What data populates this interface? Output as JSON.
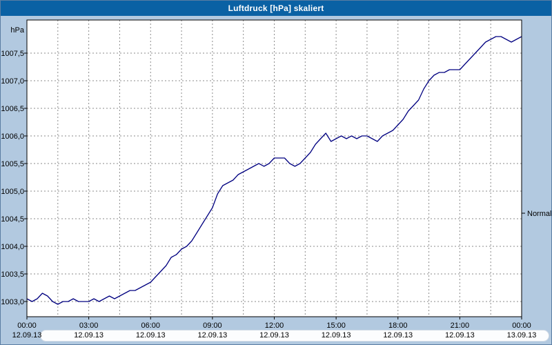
{
  "window": {
    "title": "Luftdruck [hPa] skaliert",
    "title_bar_color": "#0a61a4",
    "background_color": "#b2c9e0"
  },
  "chart_data": {
    "type": "line",
    "title": "Luftdruck [hPa] skaliert",
    "unit_label": "hPa",
    "ylabel": "hPa",
    "ylim": [
      1002.7,
      1008.1
    ],
    "grid": true,
    "plot_background": "#ffffff",
    "grid_color": "#8a8a8a",
    "axis_color": "#000000",
    "line_color": "#000080",
    "y_ticks": [
      1003.0,
      1003.5,
      1004.0,
      1004.5,
      1005.0,
      1005.5,
      1006.0,
      1006.5,
      1007.0,
      1007.5
    ],
    "y_tick_labels": [
      "1003,0",
      "1003,5",
      "1004,0",
      "1004,5",
      "1005,0",
      "1005,5",
      "1006,0",
      "1006,5",
      "1007,0",
      "1007,5"
    ],
    "x_ticks_hours": [
      0,
      3,
      6,
      9,
      12,
      15,
      18,
      21,
      24
    ],
    "x_tick_times": [
      "00:00",
      "03:00",
      "06:00",
      "09:00",
      "12:00",
      "15:00",
      "18:00",
      "21:00",
      "00:00"
    ],
    "x_tick_dates": [
      "12.09.13",
      "12.09.13",
      "12.09.13",
      "12.09.13",
      "12.09.13",
      "12.09.13",
      "12.09.13",
      "12.09.13",
      "13.09.13"
    ],
    "minor_x_interval_hours": 1.5,
    "normal_marker": {
      "label": "Normal",
      "value": 1004.6
    },
    "series": [
      {
        "name": "Luftdruck",
        "x_start_hour": 0,
        "x_step_hours": 0.25,
        "values": [
          1003.05,
          1003.0,
          1003.05,
          1003.15,
          1003.1,
          1003.0,
          1002.95,
          1003.0,
          1003.0,
          1003.05,
          1003.0,
          1003.0,
          1003.0,
          1003.05,
          1003.0,
          1003.05,
          1003.1,
          1003.05,
          1003.1,
          1003.15,
          1003.2,
          1003.2,
          1003.25,
          1003.3,
          1003.35,
          1003.45,
          1003.55,
          1003.65,
          1003.8,
          1003.85,
          1003.95,
          1004.0,
          1004.1,
          1004.25,
          1004.4,
          1004.55,
          1004.7,
          1004.95,
          1005.1,
          1005.15,
          1005.2,
          1005.3,
          1005.35,
          1005.4,
          1005.45,
          1005.5,
          1005.45,
          1005.5,
          1005.6,
          1005.6,
          1005.6,
          1005.5,
          1005.45,
          1005.5,
          1005.6,
          1005.7,
          1005.85,
          1005.95,
          1006.05,
          1005.9,
          1005.95,
          1006.0,
          1005.95,
          1006.0,
          1005.95,
          1006.0,
          1006.0,
          1005.95,
          1005.9,
          1006.0,
          1006.05,
          1006.1,
          1006.2,
          1006.3,
          1006.45,
          1006.55,
          1006.65,
          1006.85,
          1007.0,
          1007.1,
          1007.15,
          1007.15,
          1007.2,
          1007.2,
          1007.2,
          1007.3,
          1007.4,
          1007.5,
          1007.6,
          1007.7,
          1007.75,
          1007.8,
          1007.8,
          1007.75,
          1007.7,
          1007.75,
          1007.8
        ]
      }
    ]
  }
}
